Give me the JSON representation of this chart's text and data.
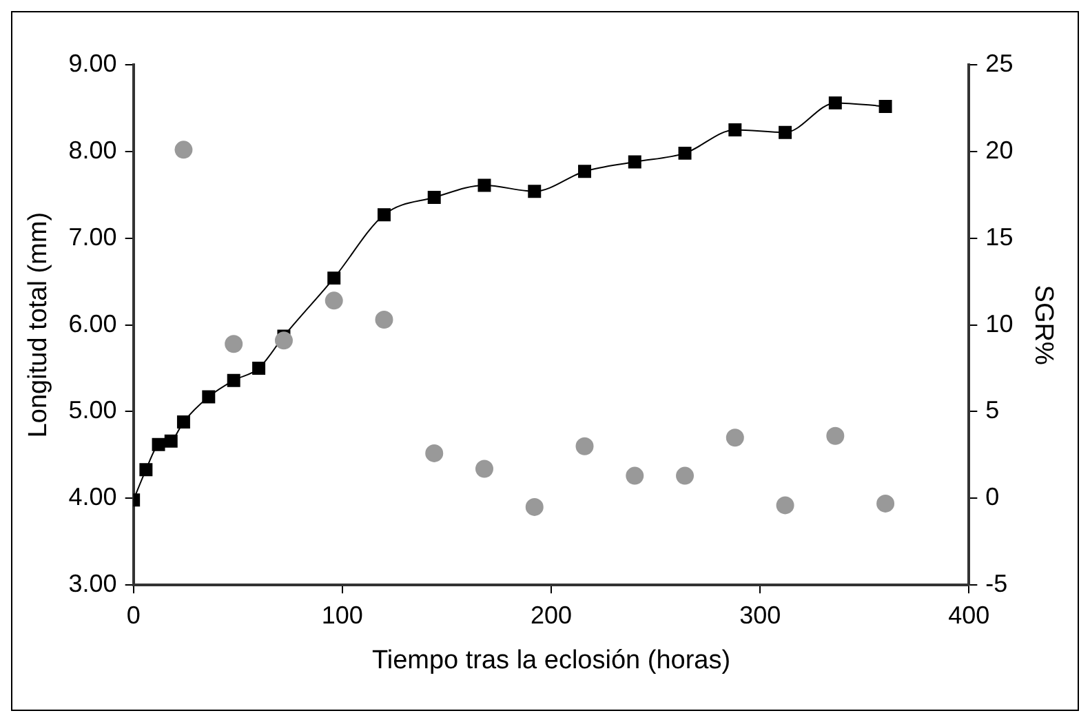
{
  "chart_data": {
    "type": "line",
    "xlabel": "Tiempo tras la eclosión (horas)",
    "ylabel": "Longitud total (mm)",
    "y2label": "SGR%",
    "xlim": [
      0,
      400
    ],
    "xticks": [
      0,
      100,
      200,
      300,
      400
    ],
    "ylim": [
      3,
      9
    ],
    "yticks": [
      {
        "value": 3,
        "label": "3.00"
      },
      {
        "value": 4,
        "label": "4.00"
      },
      {
        "value": 5,
        "label": "5.00"
      },
      {
        "value": 6,
        "label": "6.00"
      },
      {
        "value": 7,
        "label": "7.00"
      },
      {
        "value": 8,
        "label": "8.00"
      },
      {
        "value": 9,
        "label": "9.00"
      }
    ],
    "y2lim": [
      -5,
      25
    ],
    "y2ticks": [
      -5,
      0,
      5,
      10,
      15,
      20,
      25
    ],
    "grid": false,
    "legend": false,
    "line_style": "solid",
    "series": [
      {
        "type": "line",
        "color": "#000000",
        "marker": "square",
        "x": [
          0,
          6,
          12,
          18,
          24,
          36,
          48,
          60,
          72,
          96,
          120,
          144,
          168,
          192,
          216,
          240,
          264,
          288,
          312,
          336,
          360
        ],
        "values": [
          3.98,
          4.33,
          4.62,
          4.66,
          4.88,
          5.17,
          5.36,
          5.5,
          5.87,
          6.54,
          7.27,
          7.47,
          7.61,
          7.54,
          7.77,
          7.88,
          7.98,
          8.25,
          8.22,
          8.56,
          8.52
        ]
      },
      {
        "type": "scatter",
        "axis": "y2",
        "color": "#999999",
        "marker": "circle",
        "x": [
          24,
          48,
          72,
          96,
          120,
          144,
          168,
          192,
          216,
          240,
          264,
          288,
          312,
          336,
          360
        ],
        "values": [
          20.1,
          8.9,
          9.1,
          11.4,
          10.3,
          2.6,
          1.7,
          -0.5,
          3.0,
          1.3,
          1.3,
          3.5,
          -0.4,
          3.6,
          -0.3
        ]
      }
    ]
  }
}
